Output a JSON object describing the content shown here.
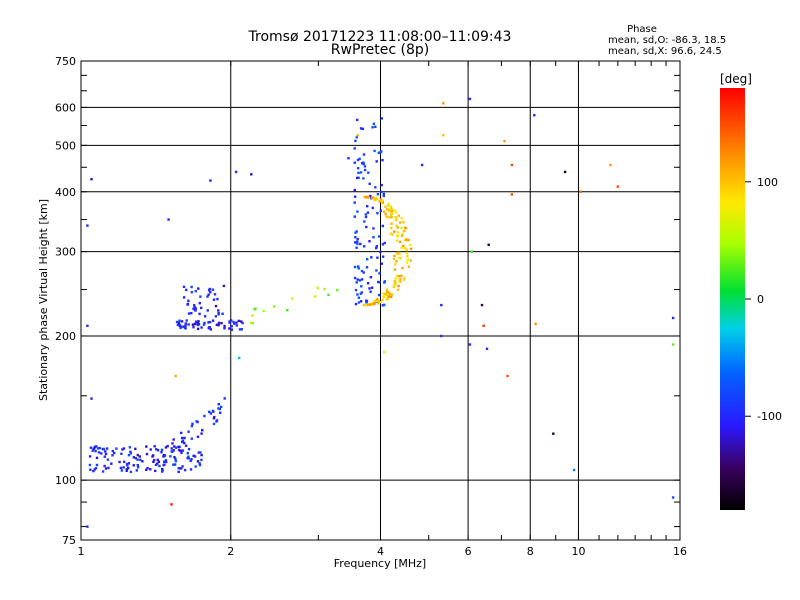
{
  "header": {
    "title": "Tromsø 20171223 11:08:00–11:09:43",
    "subtitle": "RwPretec (8p)"
  },
  "phase_info": {
    "heading": "Phase",
    "line_o": "mean, sd,O: -86.3, 18.5",
    "line_x": "mean, sd,X:  96.6, 24.5"
  },
  "colorbar": {
    "label": "[deg]",
    "ticks": [
      {
        "label": "100",
        "value": 100
      },
      {
        "label": "0",
        "value": 0
      },
      {
        "label": "-100",
        "value": -100
      }
    ],
    "range": [
      -180,
      180
    ]
  },
  "chart_data": {
    "type": "scatter",
    "title": "Tromsø 20171223 11:08:00–11:09:43",
    "subtitle": "RwPretec (8p)",
    "xlabel": "Frequency [MHz]",
    "ylabel": "Stationary phase Virtual Height [km]",
    "xscale": "log",
    "yscale": "log",
    "xlim": [
      1,
      16
    ],
    "ylim": [
      75,
      750
    ],
    "grid": true,
    "xticks": [
      {
        "value": 1,
        "label": "1"
      },
      {
        "value": 2,
        "label": "2"
      },
      {
        "value": 4,
        "label": "4"
      },
      {
        "value": 6,
        "label": "6"
      },
      {
        "value": 8,
        "label": "8"
      },
      {
        "value": 10,
        "label": "10"
      },
      {
        "value": 16,
        "label": "16"
      }
    ],
    "yticks": [
      {
        "value": 75,
        "label": "75"
      },
      {
        "value": 100,
        "label": "100"
      },
      {
        "value": 200,
        "label": "200"
      },
      {
        "value": 300,
        "label": "300"
      },
      {
        "value": 400,
        "label": "400"
      },
      {
        "value": 500,
        "label": "500"
      },
      {
        "value": 600,
        "label": "600"
      },
      {
        "value": 750,
        "label": "750"
      }
    ],
    "xgrid": [
      2,
      4,
      6,
      8,
      10
    ],
    "ygrid": [
      100,
      200,
      300,
      400,
      500,
      600
    ],
    "color_scale": {
      "quantity": "phase",
      "unit": "deg",
      "min": -180,
      "max": 180
    },
    "clusters": [
      {
        "name": "E-layer low trace",
        "color": "blue",
        "freq_range": [
          1.04,
          1.75
        ],
        "height_range": [
          104,
          118
        ],
        "phase_mean": -100,
        "approx_points": 140
      },
      {
        "name": "E-layer rising trace",
        "color": "blue",
        "freq_range": [
          1.5,
          1.95
        ],
        "height_range": [
          110,
          150
        ],
        "phase_mean": -95,
        "approx_points": 40
      },
      {
        "name": "F1 lower trace",
        "color": "blue",
        "freq_range": [
          1.55,
          2.12
        ],
        "height_range": [
          206,
          216
        ],
        "phase_mean": -100,
        "approx_points": 60
      },
      {
        "name": "F1 upper trace",
        "color": "blue",
        "freq_range": [
          1.6,
          1.95
        ],
        "height_range": [
          218,
          255
        ],
        "phase_mean": -100,
        "approx_points": 40
      },
      {
        "name": "F2 O-mode trace",
        "color": "blue",
        "freq_range": [
          3.55,
          4.1
        ],
        "height_range": [
          230,
          580
        ],
        "phase_mean": -86.3,
        "approx_points": 120
      },
      {
        "name": "F2 X-mode trace",
        "color": "orange/yellow",
        "freq_range": [
          3.7,
          4.65
        ],
        "height_range": [
          232,
          390
        ],
        "phase_mean": 96.6,
        "approx_points": 160
      },
      {
        "name": "Transition trace",
        "color": "green/yellow",
        "freq_range": [
          2.2,
          3.3
        ],
        "height_range": [
          212,
          265
        ],
        "phase_mean": 40,
        "approx_points": 14
      }
    ],
    "isolated_points": [
      {
        "x": 1.05,
        "y": 425,
        "phase": -120
      },
      {
        "x": 1.03,
        "y": 340,
        "phase": -100
      },
      {
        "x": 1.03,
        "y": 210,
        "phase": -100
      },
      {
        "x": 1.05,
        "y": 148,
        "phase": -100
      },
      {
        "x": 1.03,
        "y": 80,
        "phase": -100
      },
      {
        "x": 1.5,
        "y": 350,
        "phase": -100
      },
      {
        "x": 1.52,
        "y": 89,
        "phase": 170
      },
      {
        "x": 1.55,
        "y": 165,
        "phase": 110
      },
      {
        "x": 1.82,
        "y": 422,
        "phase": -100
      },
      {
        "x": 2.05,
        "y": 440,
        "phase": -100
      },
      {
        "x": 2.2,
        "y": 435,
        "phase": -120
      },
      {
        "x": 2.08,
        "y": 180,
        "phase": -30
      },
      {
        "x": 3.45,
        "y": 470,
        "phase": -100
      },
      {
        "x": 3.6,
        "y": 525,
        "phase": 110
      },
      {
        "x": 4.07,
        "y": 185,
        "phase": 70
      },
      {
        "x": 4.85,
        "y": 455,
        "phase": -100
      },
      {
        "x": 5.35,
        "y": 612,
        "phase": 120
      },
      {
        "x": 5.35,
        "y": 525,
        "phase": 100
      },
      {
        "x": 5.3,
        "y": 232,
        "phase": -100
      },
      {
        "x": 5.3,
        "y": 200,
        "phase": -100
      },
      {
        "x": 6.05,
        "y": 625,
        "phase": -100
      },
      {
        "x": 6.1,
        "y": 300,
        "phase": 20
      },
      {
        "x": 6.05,
        "y": 192,
        "phase": -100
      },
      {
        "x": 6.4,
        "y": 232,
        "phase": -150
      },
      {
        "x": 6.45,
        "y": 210,
        "phase": 160
      },
      {
        "x": 6.55,
        "y": 188,
        "phase": -100
      },
      {
        "x": 6.6,
        "y": 310,
        "phase": -160
      },
      {
        "x": 7.1,
        "y": 510,
        "phase": 120
      },
      {
        "x": 7.2,
        "y": 165,
        "phase": 150
      },
      {
        "x": 7.35,
        "y": 455,
        "phase": 150
      },
      {
        "x": 7.35,
        "y": 395,
        "phase": 150
      },
      {
        "x": 8.15,
        "y": 578,
        "phase": -100
      },
      {
        "x": 8.2,
        "y": 212,
        "phase": 120
      },
      {
        "x": 8.9,
        "y": 125,
        "phase": -160
      },
      {
        "x": 9.4,
        "y": 440,
        "phase": -160
      },
      {
        "x": 9.8,
        "y": 105,
        "phase": -50
      },
      {
        "x": 10.1,
        "y": 400,
        "phase": 140
      },
      {
        "x": 11.6,
        "y": 455,
        "phase": 120
      },
      {
        "x": 12.0,
        "y": 410,
        "phase": 150
      },
      {
        "x": 15.5,
        "y": 218,
        "phase": -100
      },
      {
        "x": 15.5,
        "y": 192,
        "phase": 30
      },
      {
        "x": 15.5,
        "y": 92,
        "phase": -80
      }
    ]
  }
}
